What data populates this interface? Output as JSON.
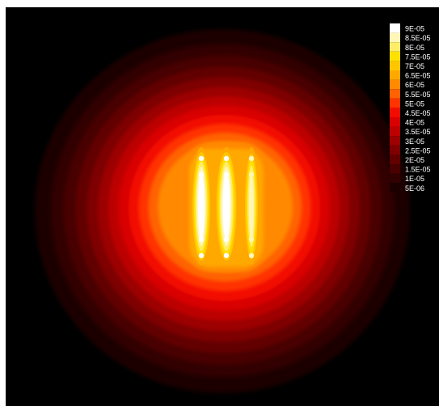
{
  "chart_data": {
    "type": "heatmap",
    "title": "",
    "xlabel": "",
    "ylabel": "",
    "background_color": "#000000",
    "colormap": "hot (black-red-orange-yellow-white)",
    "legend": {
      "placement": "top-right",
      "levels": [
        {
          "label": "9E-05",
          "value": 9e-05,
          "color": "#ffffff"
        },
        {
          "label": "8.5E-05",
          "value": 8.5e-05,
          "color": "#fff6b8"
        },
        {
          "label": "8E-05",
          "value": 8e-05,
          "color": "#ffed6a"
        },
        {
          "label": "7.5E-05",
          "value": 7.5e-05,
          "color": "#ffe000"
        },
        {
          "label": "7E-05",
          "value": 7e-05,
          "color": "#ffc600"
        },
        {
          "label": "6.5E-05",
          "value": 6.5e-05,
          "color": "#ffa800"
        },
        {
          "label": "6E-05",
          "value": 6e-05,
          "color": "#ff8900"
        },
        {
          "label": "5.5E-05",
          "value": 5.5e-05,
          "color": "#ff6200"
        },
        {
          "label": "5E-05",
          "value": 5e-05,
          "color": "#ff3300"
        },
        {
          "label": "4.5E-05",
          "value": 4.5e-05,
          "color": "#f20c00"
        },
        {
          "label": "4E-05",
          "value": 4e-05,
          "color": "#d80000"
        },
        {
          "label": "3.5E-05",
          "value": 3.5e-05,
          "color": "#bc0000"
        },
        {
          "label": "3E-05",
          "value": 3e-05,
          "color": "#9c0000"
        },
        {
          "label": "2.5E-05",
          "value": 2.5e-05,
          "color": "#7e0000"
        },
        {
          "label": "2E-05",
          "value": 2e-05,
          "color": "#620000"
        },
        {
          "label": "1.5E-05",
          "value": 1.5e-05,
          "color": "#480000"
        },
        {
          "label": "1E-05",
          "value": 1e-05,
          "color": "#310000"
        },
        {
          "label": "5E-06",
          "value": 5e-06,
          "color": "#1c0000"
        }
      ]
    },
    "sources": [
      {
        "name": "strip-left",
        "peak": 9e-05
      },
      {
        "name": "strip-center",
        "peak": 9e-05
      },
      {
        "name": "strip-right",
        "peak": 8.5e-05
      }
    ],
    "grid": false
  }
}
